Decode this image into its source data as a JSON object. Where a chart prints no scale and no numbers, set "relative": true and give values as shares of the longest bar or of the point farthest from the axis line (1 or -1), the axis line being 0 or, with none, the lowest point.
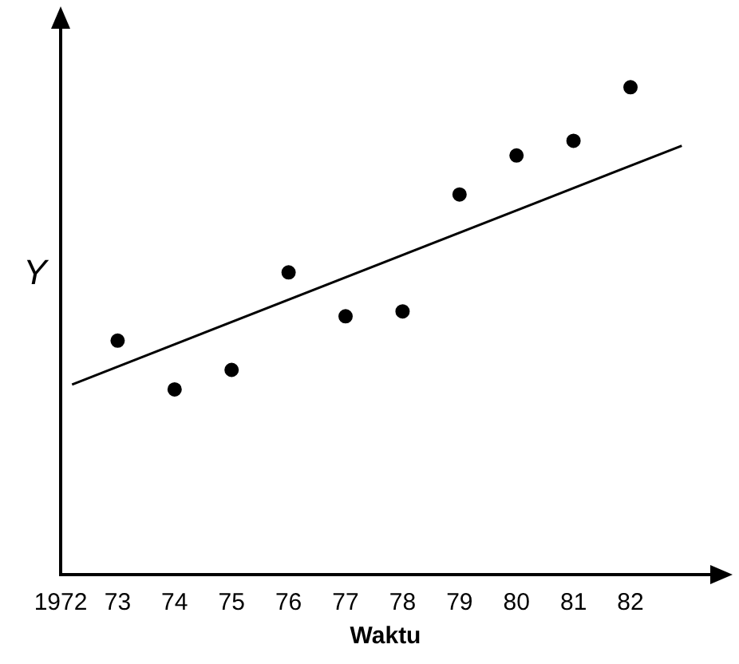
{
  "chart_data": {
    "type": "scatter",
    "xlabel": "Waktu",
    "ylabel": "Y",
    "relative": true,
    "x": [
      1973,
      1974,
      1975,
      1976,
      1977,
      1978,
      1979,
      1980,
      1981,
      1982
    ],
    "xlim": [
      1972,
      1983.4
    ],
    "xticks": [
      1972,
      {
        "value": 1973,
        "label": "73"
      },
      {
        "value": 1974,
        "label": "74"
      },
      {
        "value": 1975,
        "label": "75"
      },
      {
        "value": 1976,
        "label": "76"
      },
      {
        "value": 1977,
        "label": "77"
      },
      {
        "value": 1978,
        "label": "78"
      },
      {
        "value": 1979,
        "label": "79"
      },
      {
        "value": 1980,
        "label": "80"
      },
      {
        "value": 1981,
        "label": "81"
      },
      {
        "value": 1982,
        "label": "82"
      }
    ],
    "series": [
      {
        "color": "#000000",
        "marker": "circle",
        "values": [
          0.48,
          0.38,
          0.42,
          0.62,
          0.53,
          0.54,
          0.78,
          0.86,
          0.89,
          1
        ]
      },
      {
        "type": "line",
        "marker": "none",
        "color": "#000000",
        "x": [
          1972.2,
          1982.9
        ],
        "values": [
          0.39,
          0.88
        ]
      }
    ],
    "grid": false,
    "legend": false
  }
}
